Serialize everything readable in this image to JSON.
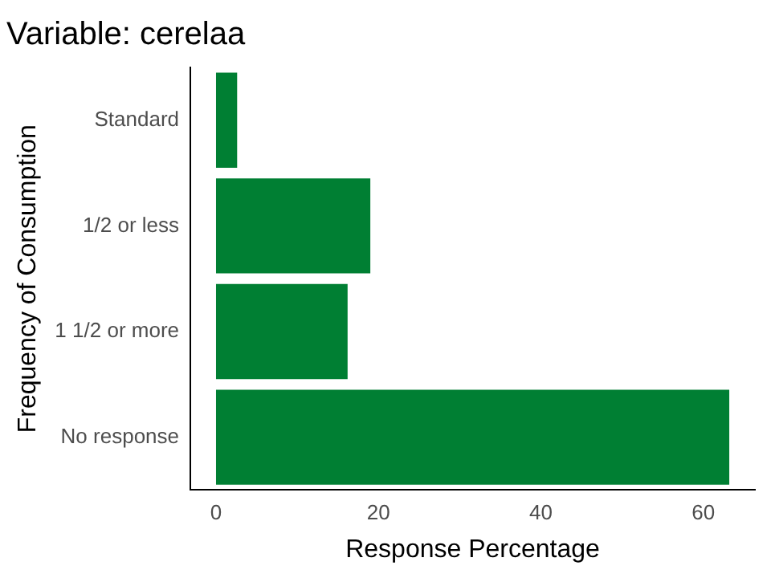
{
  "chart_data": {
    "type": "bar",
    "orientation": "horizontal",
    "title": "Variable: cerelaa",
    "xlabel": "Response Percentage",
    "ylabel": "Frequency of Consumption",
    "categories": [
      "Standard",
      "1/2 or less",
      "1 1/2 or more",
      "No response"
    ],
    "values": [
      2.6,
      19.0,
      16.2,
      63.2
    ],
    "color": "#007f33",
    "xlim": [
      -3.16,
      66.36
    ],
    "xticks": [
      0,
      20,
      40,
      60
    ],
    "grid": false,
    "legend": false
  }
}
